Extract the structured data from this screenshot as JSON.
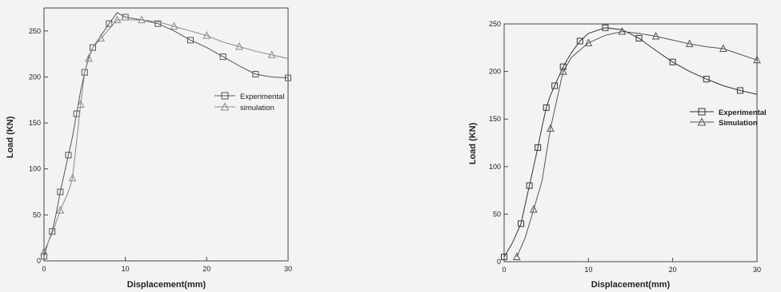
{
  "chart_data": [
    {
      "type": "line",
      "title": "",
      "xlabel": "Displacement(mm)",
      "ylabel": "Load (KN)",
      "xlim": [
        0,
        30
      ],
      "ylim": [
        0,
        275
      ],
      "xticks": [
        0,
        10,
        20,
        30
      ],
      "yticks": [
        0,
        50,
        100,
        150,
        200,
        250
      ],
      "grid": false,
      "legend_position": "right",
      "series": [
        {
          "name": "Experimental",
          "marker": "square",
          "color": "#555555",
          "x": [
            0,
            0.5,
            1,
            1.5,
            2,
            2.5,
            3,
            3.5,
            4,
            4.5,
            5,
            5.5,
            6,
            7,
            8,
            9,
            10,
            12,
            14,
            16,
            18,
            20,
            22,
            24,
            26,
            28,
            30
          ],
          "y": [
            5,
            20,
            32,
            52,
            75,
            95,
            115,
            135,
            160,
            185,
            205,
            222,
            232,
            245,
            258,
            270,
            265,
            262,
            258,
            250,
            240,
            232,
            222,
            212,
            203,
            200,
            199
          ]
        },
        {
          "name": "simulation",
          "marker": "triangle",
          "color": "#888888",
          "x": [
            0,
            1,
            2,
            3,
            3.5,
            4,
            4.5,
            5,
            5.5,
            6,
            7,
            8,
            9,
            10,
            12,
            14,
            16,
            18,
            20,
            22,
            24,
            26,
            28,
            30
          ],
          "y": [
            10,
            30,
            55,
            75,
            90,
            130,
            170,
            205,
            220,
            232,
            242,
            252,
            262,
            262,
            262,
            260,
            255,
            250,
            245,
            238,
            233,
            228,
            224,
            220
          ]
        }
      ]
    },
    {
      "type": "line",
      "title": "",
      "xlabel": "Displacement(mm)",
      "ylabel": "Load (KN)",
      "xlim": [
        0,
        30
      ],
      "ylim": [
        0,
        250
      ],
      "xticks": [
        0,
        10,
        20,
        30
      ],
      "yticks": [
        0,
        50,
        100,
        150,
        200,
        250
      ],
      "grid": false,
      "legend_position": "right",
      "series": [
        {
          "name": "Experimental",
          "marker": "square",
          "color": "#333333",
          "x": [
            0,
            1,
            2,
            2.5,
            3,
            3.5,
            4,
            4.5,
            5,
            5.5,
            6,
            6.5,
            7,
            8,
            9,
            10,
            12,
            14,
            16,
            18,
            20,
            22,
            24,
            26,
            28,
            30
          ],
          "y": [
            5,
            20,
            40,
            60,
            80,
            100,
            120,
            142,
            162,
            175,
            185,
            195,
            205,
            220,
            232,
            240,
            246,
            244,
            235,
            222,
            210,
            200,
            192,
            185,
            180,
            176
          ]
        },
        {
          "name": "Simulation",
          "marker": "triangle",
          "color": "#555555",
          "x": [
            1.5,
            2.5,
            3.5,
            4.5,
            5.5,
            6,
            7,
            8,
            10,
            12,
            14,
            16,
            18,
            20,
            22,
            24,
            26,
            28,
            30
          ],
          "y": [
            5,
            25,
            55,
            85,
            140,
            160,
            200,
            215,
            230,
            238,
            242,
            240,
            237,
            233,
            229,
            226,
            224,
            218,
            212
          ]
        }
      ]
    }
  ]
}
